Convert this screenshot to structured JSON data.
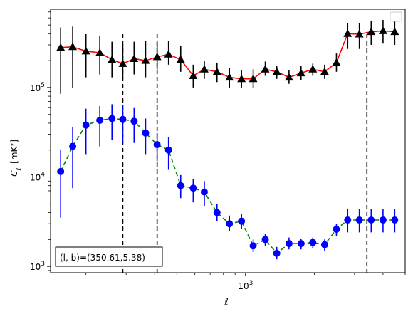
{
  "chart_data": {
    "type": "scatter",
    "xscale": "log",
    "yscale": "log",
    "xlim": [
      140,
      5000
    ],
    "ylim": [
      850,
      750000
    ],
    "xlabel": "ℓ",
    "ylabel_main": "C",
    "ylabel_sub": "ℓ",
    "ylabel_unit": "[mK²]",
    "x_ticks": [
      {
        "value": 1000,
        "base": "10",
        "exp": "3"
      }
    ],
    "y_ticks": [
      {
        "value": 1000,
        "base": "10",
        "exp": "3"
      },
      {
        "value": 10000,
        "base": "10",
        "exp": "4"
      },
      {
        "value": 100000,
        "base": "10",
        "exp": "5"
      }
    ],
    "annotation": "(l, b)=(350.61,5.38)",
    "legend": "top-right",
    "vlines": [
      290,
      410,
      3400
    ],
    "series": [
      {
        "marker": "triangle",
        "color": "#000000",
        "line_color": "#ff0000",
        "line_style": "solid",
        "x": [
          155,
          175,
          200,
          230,
          260,
          290,
          325,
          365,
          410,
          460,
          520,
          590,
          660,
          750,
          850,
          960,
          1080,
          1220,
          1370,
          1550,
          1750,
          1970,
          2220,
          2500,
          2800,
          3150,
          3550,
          4000,
          4500
        ],
        "y": [
          280000,
          285000,
          255000,
          245000,
          205000,
          185000,
          210000,
          200000,
          220000,
          235000,
          205000,
          135000,
          160000,
          150000,
          130000,
          125000,
          125000,
          160000,
          150000,
          130000,
          145000,
          160000,
          150000,
          190000,
          400000,
          395000,
          420000,
          430000,
          420000
        ],
        "ylow": [
          85000,
          100000,
          130000,
          140000,
          130000,
          125000,
          140000,
          130000,
          160000,
          180000,
          150000,
          100000,
          125000,
          115000,
          100000,
          100000,
          100000,
          135000,
          125000,
          110000,
          120000,
          135000,
          125000,
          150000,
          270000,
          270000,
          300000,
          310000,
          300000
        ],
        "yhigh": [
          470000,
          480000,
          395000,
          380000,
          325000,
          300000,
          325000,
          335000,
          320000,
          330000,
          290000,
          180000,
          200000,
          190000,
          165000,
          155000,
          160000,
          195000,
          175000,
          155000,
          175000,
          185000,
          180000,
          240000,
          520000,
          530000,
          560000,
          570000,
          560000
        ]
      },
      {
        "marker": "circle",
        "color": "#0000ff",
        "line_color": "#008000",
        "line_style": "dashed",
        "x": [
          155,
          175,
          200,
          230,
          260,
          290,
          325,
          365,
          410,
          460,
          520,
          590,
          660,
          750,
          850,
          960,
          1080,
          1220,
          1370,
          1550,
          1750,
          1970,
          2220,
          2500,
          2800,
          3150,
          3550,
          4000,
          4500
        ],
        "y": [
          11500,
          22000,
          38000,
          43000,
          45000,
          44000,
          42000,
          31000,
          23000,
          20000,
          8000,
          7500,
          6800,
          4000,
          3000,
          3200,
          1700,
          2000,
          1400,
          1800,
          1800,
          1850,
          1750,
          2600,
          3300,
          3300,
          3300,
          3300,
          3300
        ],
        "ylow": [
          3500,
          7500,
          18000,
          22000,
          26000,
          24000,
          24000,
          18000,
          15000,
          12000,
          5800,
          5200,
          4700,
          3200,
          2500,
          2600,
          1450,
          1700,
          1200,
          1550,
          1550,
          1600,
          1500,
          2200,
          2400,
          2400,
          2400,
          2400,
          2400
        ],
        "yhigh": [
          20000,
          36000,
          58000,
          62000,
          65000,
          63000,
          60000,
          45000,
          31000,
          28000,
          10500,
          9500,
          9000,
          5000,
          3700,
          3900,
          2000,
          2300,
          1650,
          2100,
          2050,
          2100,
          2000,
          3000,
          4400,
          4400,
          4400,
          4400,
          4400
        ]
      }
    ]
  }
}
